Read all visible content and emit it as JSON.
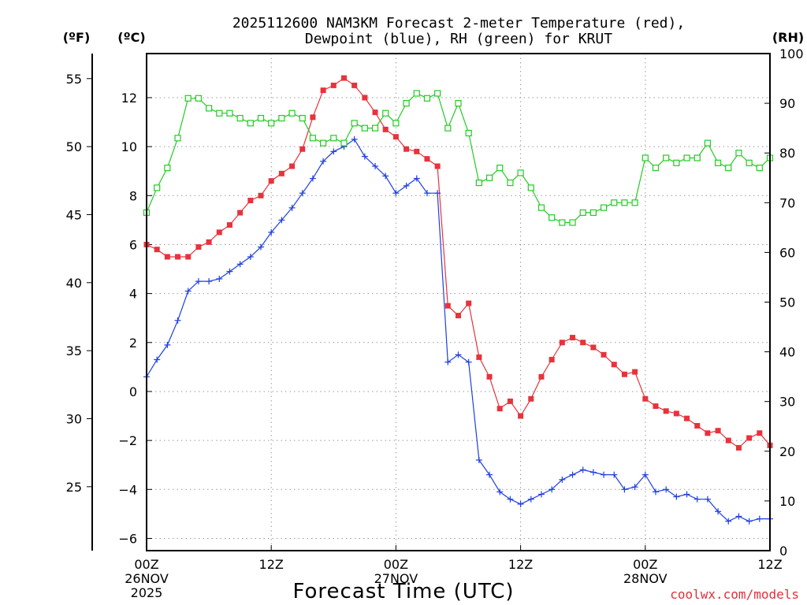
{
  "chart_data": {
    "type": "line",
    "title_line1": "2025112600 NAM3KM Forecast 2-meter Temperature (red),",
    "title_line2": "Dewpoint (blue), RH (green) for KRUT",
    "xlabel": "Forecast Time (UTC)",
    "credit": "coolwx.com/models",
    "unit_left_f": "(ºF)",
    "unit_left_c": "(ºC)",
    "unit_right": "(RH)",
    "x_range_hours": [
      0,
      60
    ],
    "x_ticks": [
      {
        "hour": 0,
        "lines": [
          "00Z",
          "26NOV",
          "2025"
        ]
      },
      {
        "hour": 12,
        "lines": [
          "12Z"
        ]
      },
      {
        "hour": 24,
        "lines": [
          "00Z",
          "27NOV"
        ]
      },
      {
        "hour": 36,
        "lines": [
          "12Z"
        ]
      },
      {
        "hour": 48,
        "lines": [
          "00Z",
          "28NOV"
        ]
      },
      {
        "hour": 60,
        "lines": [
          "12Z"
        ]
      }
    ],
    "celsius_axis": {
      "range": [
        -6.5,
        13.8
      ],
      "ticks": [
        -6,
        -4,
        -2,
        0,
        2,
        4,
        6,
        8,
        10,
        12
      ],
      "labels": [
        "−6",
        "−4",
        "−2",
        "0",
        "2",
        "4",
        "6",
        "8",
        "10",
        "12"
      ]
    },
    "fahrenheit_axis": {
      "ticks": [
        25,
        30,
        35,
        40,
        45,
        50,
        55
      ],
      "labels": [
        "25",
        "30",
        "35",
        "40",
        "45",
        "50",
        "55"
      ]
    },
    "rh_axis": {
      "range": [
        0,
        100
      ],
      "ticks": [
        0,
        10,
        20,
        30,
        40,
        50,
        60,
        70,
        80,
        90,
        100
      ],
      "labels": [
        "0",
        "10",
        "20",
        "30",
        "40",
        "50",
        "60",
        "70",
        "80",
        "90",
        "100"
      ]
    },
    "colors": {
      "temperature": "#e8323c",
      "dewpoint": "#1f3fe0",
      "rh": "#22cc22"
    },
    "series": [
      {
        "name": "Temperature",
        "unit": "C",
        "axis": "celsius",
        "marker": "square",
        "values": [
          6.0,
          5.8,
          5.5,
          5.5,
          5.5,
          5.9,
          6.1,
          6.5,
          6.8,
          7.3,
          7.8,
          8.0,
          8.6,
          8.9,
          9.2,
          9.9,
          11.2,
          12.3,
          12.5,
          12.8,
          12.5,
          12.0,
          11.4,
          10.7,
          10.4,
          9.9,
          9.8,
          9.5,
          9.2,
          3.5,
          3.1,
          3.6,
          1.4,
          0.6,
          -0.7,
          -0.4,
          -1.0,
          -0.3,
          0.6,
          1.3,
          2.0,
          2.2,
          2.0,
          1.8,
          1.5,
          1.1,
          0.7,
          0.8,
          -0.3,
          -0.6,
          -0.8,
          -0.9,
          -1.1,
          -1.4,
          -1.7,
          -1.6,
          -2.0,
          -2.3,
          -1.9,
          -1.7,
          -2.2
        ]
      },
      {
        "name": "Dewpoint",
        "unit": "C",
        "axis": "celsius",
        "marker": "plus",
        "values": [
          0.6,
          1.3,
          1.9,
          2.9,
          4.1,
          4.5,
          4.5,
          4.6,
          4.9,
          5.2,
          5.5,
          5.9,
          6.5,
          7.0,
          7.5,
          8.1,
          8.7,
          9.4,
          9.8,
          10.0,
          10.3,
          9.6,
          9.2,
          8.8,
          8.1,
          8.4,
          8.7,
          8.1,
          8.1,
          1.2,
          1.5,
          1.2,
          -2.8,
          -3.4,
          -4.1,
          -4.4,
          -4.6,
          -4.4,
          -4.2,
          -4.0,
          -3.6,
          -3.4,
          -3.2,
          -3.3,
          -3.4,
          -3.4,
          -4.0,
          -3.9,
          -3.4,
          -4.1,
          -4.0,
          -4.3,
          -4.2,
          -4.4,
          -4.4,
          -4.9,
          -5.3,
          -5.1,
          -5.3,
          -5.2,
          -5.2
        ]
      },
      {
        "name": "Relative Humidity",
        "unit": "%",
        "axis": "rh",
        "marker": "open-square",
        "values": [
          68,
          73,
          77,
          83,
          91,
          91,
          89,
          88,
          88,
          87,
          86,
          87,
          86,
          87,
          88,
          87,
          83,
          82,
          83,
          82,
          86,
          85,
          85,
          88,
          86,
          90,
          92,
          91,
          92,
          85,
          90,
          84,
          74,
          75,
          77,
          74,
          76,
          73,
          69,
          67,
          66,
          66,
          68,
          68,
          69,
          70,
          70,
          70,
          79,
          77,
          79,
          78,
          79,
          79,
          82,
          78,
          77,
          80,
          78,
          77,
          79
        ]
      }
    ]
  }
}
